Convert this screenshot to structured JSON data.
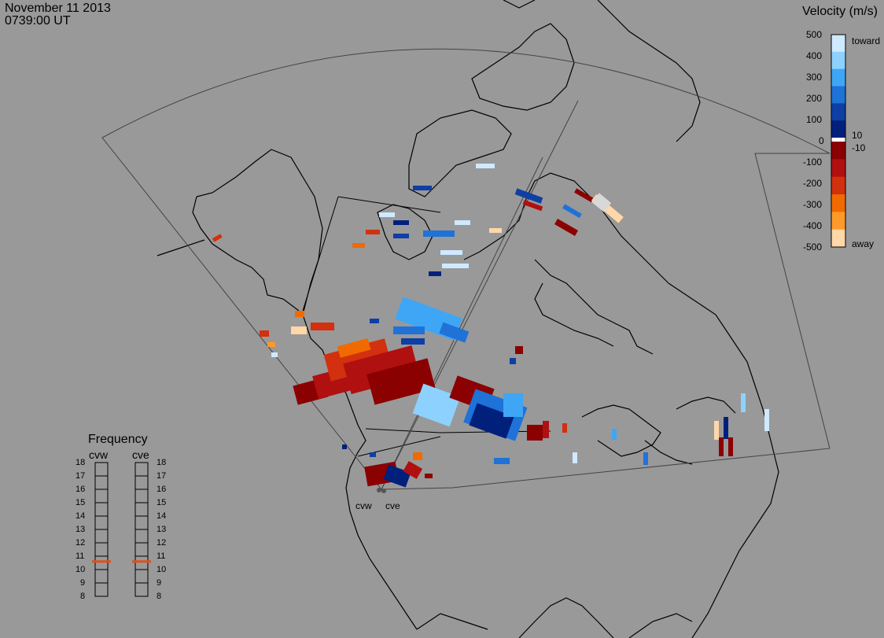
{
  "header": {
    "date": "November 11 2013",
    "time": "0739:00 UT"
  },
  "velocity_legend": {
    "title": "Velocity (m/s)",
    "ticks": [
      "500",
      "400",
      "300",
      "200",
      "100",
      "0",
      "-100",
      "-200",
      "-300",
      "-400",
      "-500"
    ],
    "inner_labels": [
      "10",
      "-10"
    ],
    "toward_label": "toward",
    "away_label": "away",
    "colors": [
      "#cfe9ff",
      "#8dd2ff",
      "#3fa6f5",
      "#1e72d8",
      "#0d3fa5",
      "#00207c",
      "#ffffff",
      "#8b0000",
      "#b01010",
      "#d2300e",
      "#f06a00",
      "#ff9a2a",
      "#ffd7a8"
    ]
  },
  "frequency_legend": {
    "title": "Frequency",
    "radars": [
      {
        "name": "cvw",
        "value_mhz": 10.6
      },
      {
        "name": "cve",
        "value_mhz": 10.6
      }
    ],
    "ticks": [
      "18",
      "17",
      "16",
      "15",
      "14",
      "13",
      "12",
      "11",
      "10",
      "9",
      "8"
    ],
    "indicator_color": "#e0501a"
  },
  "stations": [
    {
      "name": "cvw"
    },
    {
      "name": "cve"
    }
  ]
}
